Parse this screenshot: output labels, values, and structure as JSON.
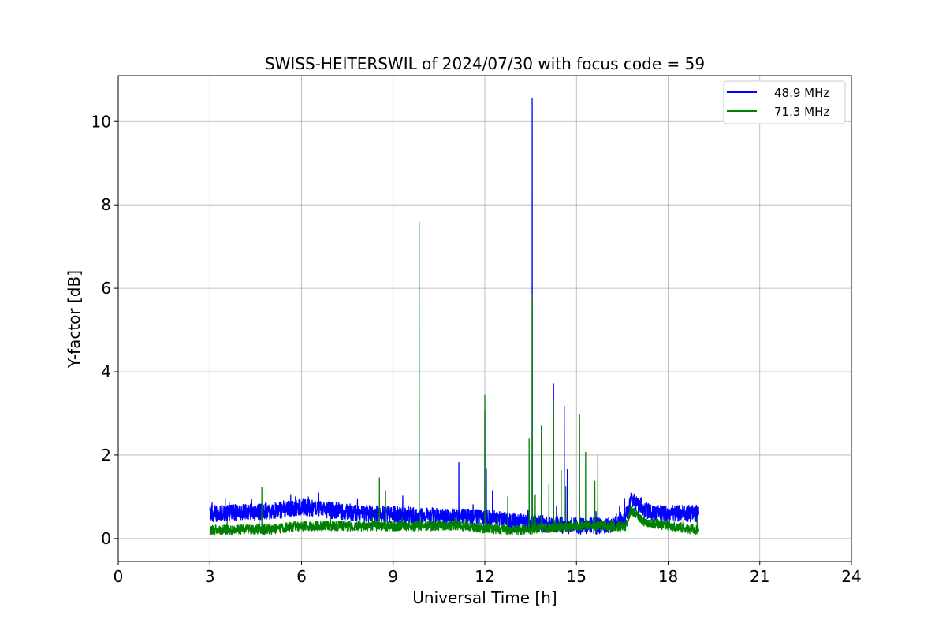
{
  "chart_data": {
    "type": "line",
    "title": "SWISS-HEITERSWIL of 2024/07/30 with focus code = 59",
    "xlabel": "Universal Time [h]",
    "ylabel": "Y-factor [dB]",
    "xlim": [
      0,
      24
    ],
    "ylim": [
      -0.55,
      11.1
    ],
    "xticks": [
      0,
      3,
      6,
      9,
      12,
      15,
      18,
      21,
      24
    ],
    "yticks": [
      0,
      2,
      4,
      6,
      8,
      10
    ],
    "grid": true,
    "legend_position": "top-right",
    "series": [
      {
        "name": "48.9 MHz",
        "color": "#0000ff",
        "x_range": [
          3.0,
          19.0
        ],
        "baseline_points": [
          [
            3.0,
            0.6
          ],
          [
            5.0,
            0.65
          ],
          [
            6.0,
            0.75
          ],
          [
            8.0,
            0.6
          ],
          [
            10.0,
            0.55
          ],
          [
            12.0,
            0.5
          ],
          [
            13.0,
            0.4
          ],
          [
            14.0,
            0.35
          ],
          [
            15.0,
            0.3
          ],
          [
            16.0,
            0.3
          ],
          [
            16.6,
            0.5
          ],
          [
            16.8,
            0.95
          ],
          [
            17.0,
            0.8
          ],
          [
            17.5,
            0.6
          ],
          [
            19.0,
            0.6
          ]
        ],
        "noise_amplitude": 0.2,
        "spikes": [
          [
            3.5,
            0.95
          ],
          [
            4.7,
            0.85
          ],
          [
            5.8,
            1.0
          ],
          [
            9.85,
            2.2
          ],
          [
            11.15,
            1.82
          ],
          [
            12.0,
            3.1
          ],
          [
            12.05,
            1.68
          ],
          [
            12.25,
            1.15
          ],
          [
            13.55,
            10.55
          ],
          [
            14.25,
            3.72
          ],
          [
            14.6,
            3.17
          ],
          [
            14.7,
            1.65
          ]
        ]
      },
      {
        "name": "71.3 MHz",
        "color": "#008000",
        "x_range": [
          3.0,
          19.0
        ],
        "baseline_points": [
          [
            3.0,
            0.2
          ],
          [
            5.0,
            0.22
          ],
          [
            6.0,
            0.3
          ],
          [
            8.0,
            0.3
          ],
          [
            10.0,
            0.3
          ],
          [
            11.0,
            0.32
          ],
          [
            12.0,
            0.25
          ],
          [
            13.0,
            0.2
          ],
          [
            14.0,
            0.25
          ],
          [
            15.0,
            0.3
          ],
          [
            16.0,
            0.3
          ],
          [
            16.6,
            0.3
          ],
          [
            16.8,
            0.7
          ],
          [
            17.2,
            0.4
          ],
          [
            19.0,
            0.2
          ]
        ],
        "noise_amplitude": 0.12,
        "spikes": [
          [
            4.7,
            1.22
          ],
          [
            8.55,
            1.45
          ],
          [
            8.75,
            1.15
          ],
          [
            9.85,
            7.58
          ],
          [
            12.0,
            3.45
          ],
          [
            12.75,
            1.0
          ],
          [
            13.45,
            2.4
          ],
          [
            13.55,
            5.85
          ],
          [
            13.65,
            1.05
          ],
          [
            13.85,
            2.7
          ],
          [
            14.1,
            1.3
          ],
          [
            14.25,
            3.3
          ],
          [
            14.5,
            1.62
          ],
          [
            14.65,
            1.25
          ],
          [
            15.1,
            2.97
          ],
          [
            15.3,
            2.07
          ],
          [
            15.6,
            1.37
          ],
          [
            15.7,
            2.0
          ]
        ]
      }
    ]
  }
}
